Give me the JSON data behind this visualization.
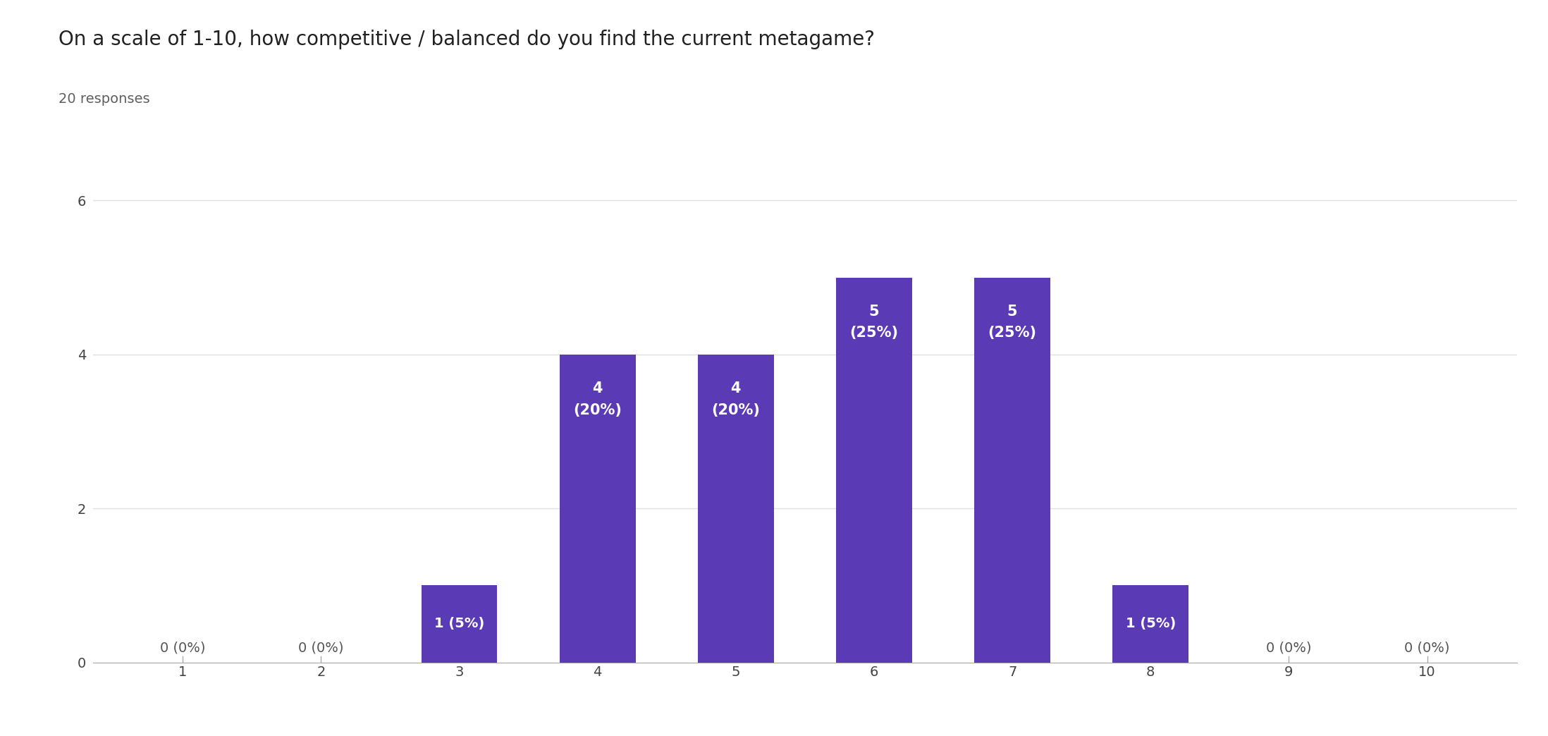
{
  "title": "On a scale of 1-10, how competitive / balanced do you find the current metagame?",
  "subtitle": "20 responses",
  "categories": [
    1,
    2,
    3,
    4,
    5,
    6,
    7,
    8,
    9,
    10
  ],
  "values": [
    0,
    0,
    1,
    4,
    4,
    5,
    5,
    1,
    0,
    0
  ],
  "percentages": [
    "0%",
    "0%",
    "5%",
    "20%",
    "20%",
    "25%",
    "25%",
    "5%",
    "0%",
    "0%"
  ],
  "bar_color": "#5b3bb5",
  "label_color_inside": "#ffffff",
  "label_color_outside": "#555555",
  "title_fontsize": 20,
  "subtitle_fontsize": 14,
  "tick_fontsize": 14,
  "label_fontsize": 14,
  "ylim": [
    0,
    6.5
  ],
  "yticks": [
    0,
    2,
    4,
    6
  ],
  "background_color": "#ffffff",
  "grid_color": "#e0e0e0"
}
